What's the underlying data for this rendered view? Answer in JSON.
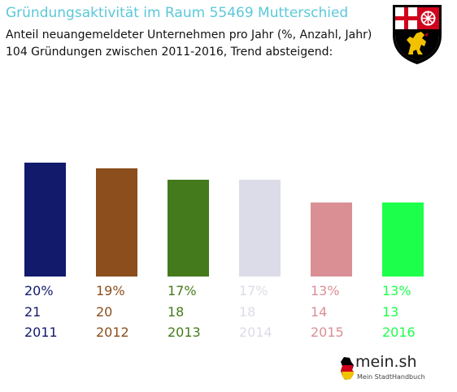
{
  "header": {
    "title": "Gründungsaktivität im Raum 55469 Mutterschied",
    "subtitle_line1": "Anteil neuangemeldeter Unternehmen pro Jahr (%, Anzahl, Jahr)",
    "subtitle_line2": "104 Gründungen zwischen 2011-2016, Trend absteigend:"
  },
  "branding": {
    "logo_text": "mein.sh",
    "logo_tagline": "Mein StadtHandbuch",
    "crest_icon": "rheinland-pfalz-coat-of-arms-icon"
  },
  "chart_data": {
    "type": "bar",
    "categories": [
      "2011",
      "2012",
      "2013",
      "2014",
      "2015",
      "2016"
    ],
    "values": [
      20,
      19,
      17,
      17,
      13,
      13
    ],
    "percent_labels": [
      "20%",
      "19%",
      "17%",
      "17%",
      "13%",
      "13%"
    ],
    "counts": [
      "21",
      "20",
      "18",
      "18",
      "14",
      "13"
    ],
    "colors": [
      "#111a6b",
      "#8b4e1c",
      "#457a1c",
      "#dcdce8",
      "#da8f95",
      "#1cff4b"
    ],
    "ylim": [
      0,
      20
    ]
  }
}
